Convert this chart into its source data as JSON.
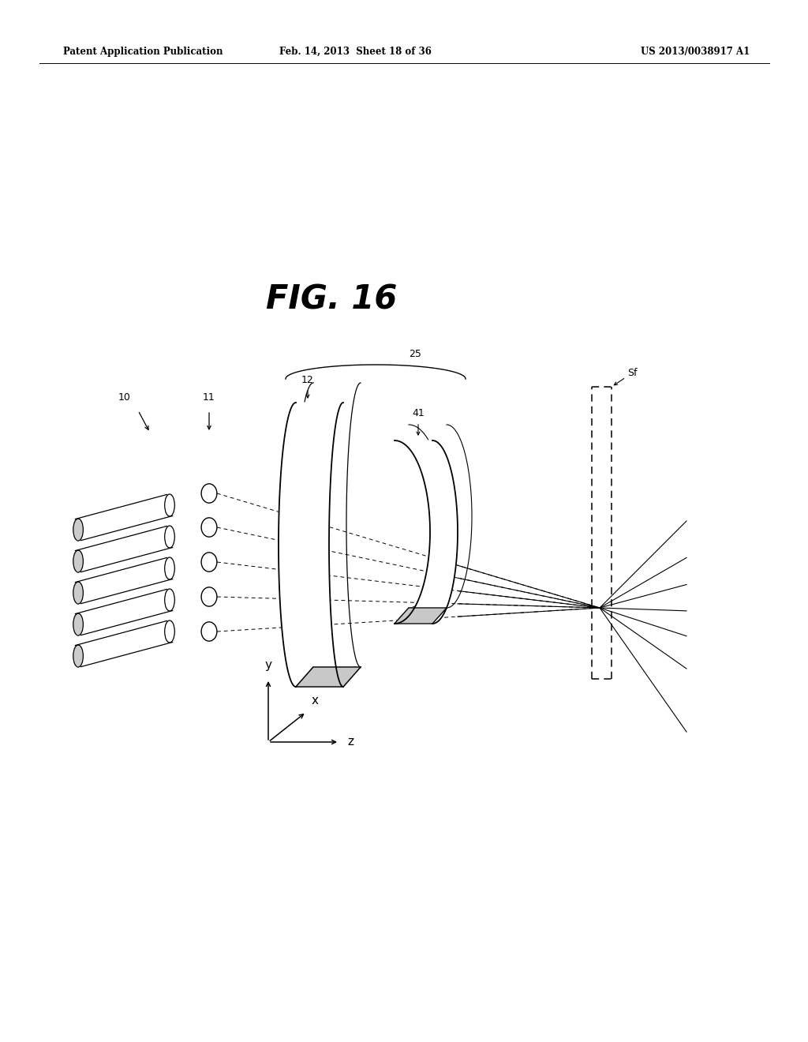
{
  "title": "FIG. 16",
  "header_left": "Patent Application Publication",
  "header_middle": "Feb. 14, 2013  Sheet 18 of 36",
  "header_right": "US 2013/0038917 A1",
  "bg_color": "#ffffff",
  "lc": "#000000",
  "label_10": "10",
  "label_11": "11",
  "label_12": "12",
  "label_25": "25",
  "label_41": "41",
  "label_Sf": "Sf",
  "label_y": "y",
  "label_x": "x",
  "label_z": "z"
}
